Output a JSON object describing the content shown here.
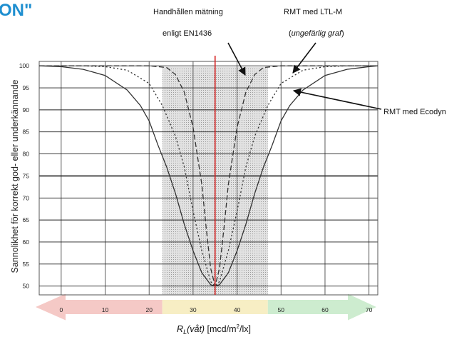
{
  "corner_text": "ON\"",
  "chart_data": {
    "type": "line",
    "xlabel": {
      "main": "R",
      "sub": "L",
      "italic": "(våt)",
      "unit_pre": " [mcd/m",
      "sup": "2",
      "unit_post": "/lx]"
    },
    "ylabel": "Sannolikhet för korrekt god- eller underkännande",
    "xlim": [
      -5,
      72
    ],
    "ylim": [
      48,
      101
    ],
    "x_ticks": [
      0,
      10,
      20,
      30,
      40,
      50,
      60,
      70
    ],
    "y_ticks": [
      50,
      55,
      60,
      65,
      70,
      75,
      80,
      85,
      90,
      95,
      100
    ],
    "grid": true,
    "threshold_x": 35,
    "shaded_band": [
      23,
      47
    ],
    "zones": [
      {
        "name": "red",
        "color": "#f5c9c6",
        "from": -5,
        "to": 23
      },
      {
        "name": "yellow",
        "color": "#f7eec4",
        "from": 23,
        "to": 47
      },
      {
        "name": "green",
        "color": "#cdeccf",
        "from": 47,
        "to": 70
      }
    ],
    "series": [
      {
        "name": "RMT med Ecodyn",
        "style": "solid",
        "points": [
          [
            -5,
            100
          ],
          [
            0,
            99.8
          ],
          [
            5,
            99.2
          ],
          [
            10,
            97.8
          ],
          [
            15,
            94.5
          ],
          [
            18,
            91
          ],
          [
            20,
            87.5
          ],
          [
            22,
            82
          ],
          [
            24,
            77
          ],
          [
            26,
            71
          ],
          [
            28,
            64
          ],
          [
            30,
            58
          ],
          [
            32,
            53
          ],
          [
            34,
            50.3
          ],
          [
            35,
            50
          ],
          [
            36,
            50.3
          ],
          [
            38,
            53
          ],
          [
            40,
            58
          ],
          [
            42,
            64
          ],
          [
            44,
            71
          ],
          [
            46,
            77
          ],
          [
            48,
            82
          ],
          [
            50,
            87.5
          ],
          [
            52,
            91
          ],
          [
            55,
            94.5
          ],
          [
            60,
            97.8
          ],
          [
            65,
            99.2
          ],
          [
            70,
            99.8
          ],
          [
            72,
            100
          ]
        ]
      },
      {
        "name": "RMT med LTL-M",
        "style": "dotted",
        "points": [
          [
            -5,
            100
          ],
          [
            5,
            100
          ],
          [
            10,
            99.8
          ],
          [
            15,
            99
          ],
          [
            20,
            96
          ],
          [
            23,
            91
          ],
          [
            26,
            84
          ],
          [
            28,
            77
          ],
          [
            30,
            67
          ],
          [
            32,
            58
          ],
          [
            34,
            51
          ],
          [
            35,
            50
          ],
          [
            36,
            51
          ],
          [
            38,
            58
          ],
          [
            40,
            67
          ],
          [
            42,
            77
          ],
          [
            44,
            84
          ],
          [
            47,
            91
          ],
          [
            50,
            96
          ],
          [
            55,
            99
          ],
          [
            60,
            99.8
          ],
          [
            65,
            100
          ],
          [
            72,
            100
          ]
        ]
      },
      {
        "name": "Handhållen mätning enligt EN1436",
        "style": "dashed",
        "points": [
          [
            -5,
            100
          ],
          [
            20,
            100
          ],
          [
            24,
            99.6
          ],
          [
            26,
            98
          ],
          [
            28,
            94
          ],
          [
            30,
            86
          ],
          [
            32,
            73
          ],
          [
            33,
            63
          ],
          [
            34,
            54
          ],
          [
            35,
            50
          ],
          [
            36,
            54
          ],
          [
            37,
            63
          ],
          [
            38,
            73
          ],
          [
            40,
            86
          ],
          [
            42,
            94
          ],
          [
            44,
            98
          ],
          [
            46,
            99.6
          ],
          [
            50,
            100
          ],
          [
            72,
            100
          ]
        ]
      }
    ],
    "annotations": [
      {
        "lines": [
          "Handhållen mätning",
          "enligt EN1436"
        ]
      },
      {
        "lines": [
          "RMT med LTL-M"
        ],
        "note": {
          "open": "(",
          "text": "ungefärlig graf",
          "close": ")"
        }
      },
      {
        "lines": [
          "RMT med Ecodyn"
        ]
      }
    ]
  }
}
